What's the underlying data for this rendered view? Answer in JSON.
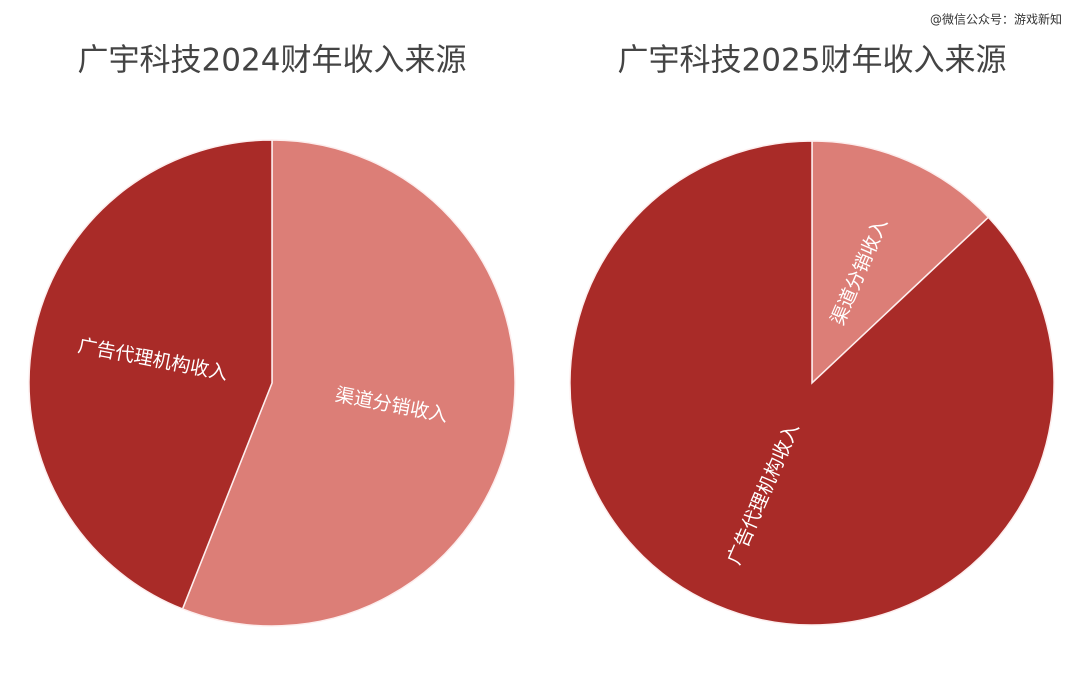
{
  "watermark": "@微信公众号：游戏新知",
  "chart_data": [
    {
      "type": "pie",
      "title": "广宇科技2024财年收入来源",
      "categories": [
        "渠道分销收入",
        "广告代理机构收入"
      ],
      "values": [
        56,
        44
      ],
      "colors": [
        "#dc7e77",
        "#a92b28"
      ]
    },
    {
      "type": "pie",
      "title": "广宇科技2025财年收入来源",
      "categories": [
        "渠道分销收入",
        "广告代理机构收入"
      ],
      "values": [
        13,
        87
      ],
      "colors": [
        "#dc7e77",
        "#a92b28"
      ]
    }
  ]
}
